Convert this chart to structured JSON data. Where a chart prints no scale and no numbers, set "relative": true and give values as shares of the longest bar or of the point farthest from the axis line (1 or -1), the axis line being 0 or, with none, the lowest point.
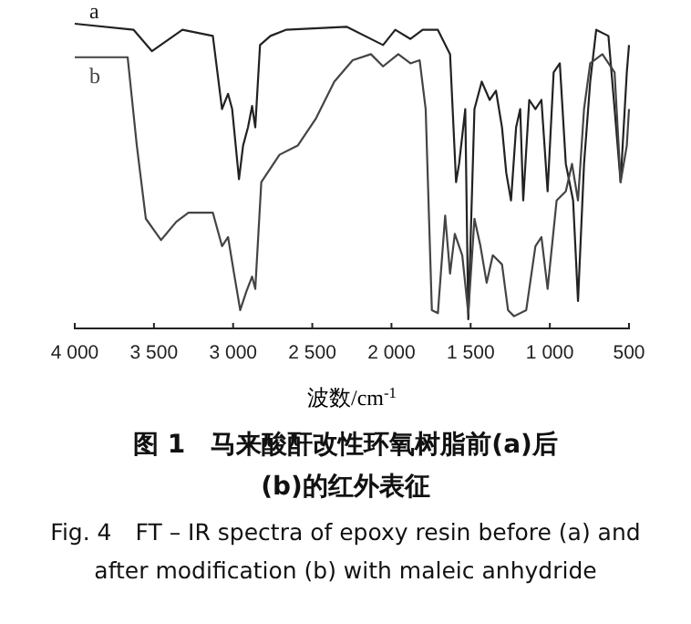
{
  "chart_data": {
    "type": "line",
    "relative": true,
    "title": "图 1　马来酸酐改性环氧树脂前(a)后(b)的红外表征",
    "subtitle": "Fig. 4　FT – IR spectra of epoxy resin before (a) and after modification (b) with maleic anhydride",
    "xlabel": "波数/cm$^{-1}$",
    "xlim": [
      4000,
      500
    ],
    "xticks": [
      {
        "value": 4000,
        "label": "4 000"
      },
      {
        "value": 3500,
        "label": "3 500"
      },
      {
        "value": 3000,
        "label": "3 000"
      },
      {
        "value": 2500,
        "label": "2 500"
      },
      {
        "value": 2000,
        "label": "2 000"
      },
      {
        "value": 1500,
        "label": "1 500"
      },
      {
        "value": 1000,
        "label": "1 000"
      },
      500
    ],
    "grid": false,
    "marker": "none",
    "line_style": "solid",
    "series": [
      {
        "name": "a",
        "color": "#222222",
        "x": [
          4000,
          3628,
          3513,
          3320,
          3128,
          3070,
          3032,
          3006,
          2963,
          2937,
          2906,
          2880,
          2860,
          2830,
          2764,
          2667,
          2284,
          2053,
          1976,
          1880,
          1803,
          1707,
          1630,
          1592,
          1573,
          1534,
          1515,
          1476,
          1430,
          1380,
          1340,
          1302,
          1275,
          1245,
          1213,
          1187,
          1168,
          1130,
          1091,
          1053,
          1014,
          976,
          937,
          899,
          853,
          822,
          784,
          745,
          707,
          630,
          591,
          553,
          514,
          500
        ],
        "values": [
          1,
          0.98,
          0.91,
          0.98,
          0.96,
          0.72,
          0.77,
          0.72,
          0.49,
          0.6,
          0.66,
          0.73,
          0.66,
          0.93,
          0.96,
          0.98,
          0.99,
          0.93,
          0.98,
          0.95,
          0.98,
          0.98,
          0.9,
          0.48,
          0.54,
          0.72,
          0.03,
          0.72,
          0.81,
          0.75,
          0.78,
          0.66,
          0.51,
          0.42,
          0.66,
          0.72,
          0.42,
          0.75,
          0.72,
          0.75,
          0.45,
          0.84,
          0.87,
          0.54,
          0.42,
          0.09,
          0.54,
          0.81,
          0.98,
          0.96,
          0.72,
          0.48,
          0.84,
          0.93
        ]
      },
      {
        "name": "b",
        "color": "#444444",
        "x": [
          4000,
          3666,
          3608,
          3551,
          3455,
          3359,
          3282,
          3128,
          3070,
          3032,
          2994,
          2955,
          2917,
          2880,
          2860,
          2822,
          2707,
          2592,
          2476,
          2361,
          2245,
          2130,
          2053,
          1957,
          1880,
          1822,
          1784,
          1745,
          1707,
          1661,
          1630,
          1600,
          1553,
          1515,
          1476,
          1438,
          1399,
          1360,
          1302,
          1264,
          1226,
          1149,
          1091,
          1053,
          1014,
          957,
          899,
          860,
          822,
          784,
          745,
          668,
          591,
          553,
          514,
          500
        ],
        "values": [
          0.89,
          0.89,
          0.6,
          0.36,
          0.29,
          0.35,
          0.38,
          0.38,
          0.27,
          0.3,
          0.18,
          0.06,
          0.12,
          0.17,
          0.13,
          0.48,
          0.57,
          0.6,
          0.69,
          0.81,
          0.88,
          0.9,
          0.86,
          0.9,
          0.87,
          0.88,
          0.72,
          0.06,
          0.05,
          0.37,
          0.18,
          0.31,
          0.24,
          0.05,
          0.36,
          0.27,
          0.15,
          0.24,
          0.21,
          0.06,
          0.04,
          0.06,
          0.27,
          0.3,
          0.13,
          0.42,
          0.45,
          0.54,
          0.42,
          0.72,
          0.87,
          0.9,
          0.84,
          0.48,
          0.6,
          0.72
        ]
      }
    ]
  }
}
